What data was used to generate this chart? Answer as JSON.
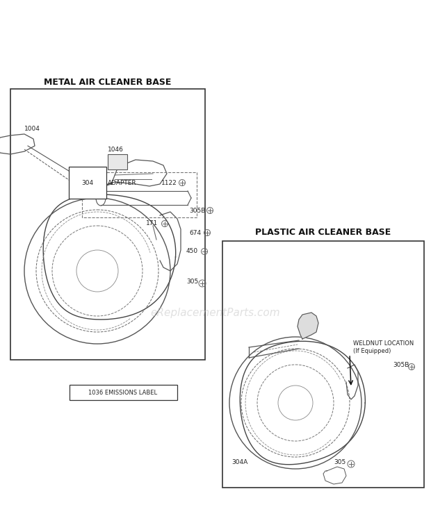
{
  "bg_color": "#ffffff",
  "fig_width": 6.2,
  "fig_height": 7.4,
  "dpi": 100,
  "watermark": "eReplacementParts.com",
  "left_title": "METAL AIR CLEANER BASE",
  "right_title": "PLASTIC AIR CLEANER BASE",
  "emissions_text": "1036 EMISSIONS LABEL"
}
